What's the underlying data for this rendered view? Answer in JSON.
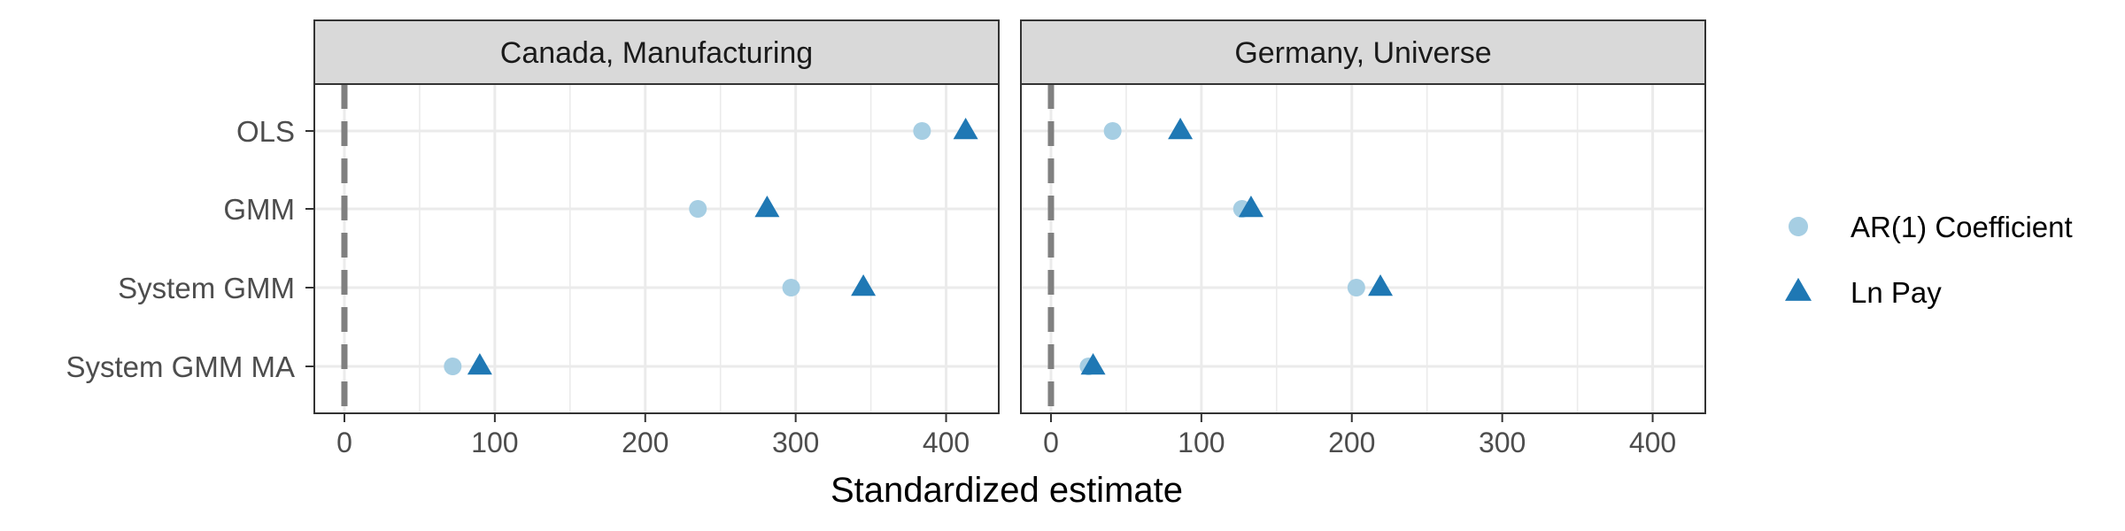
{
  "chart_data": {
    "type": "scatter",
    "xlabel": "Standardized estimate",
    "ylabel": "",
    "xlim": [
      -20,
      435
    ],
    "x_ticks": [
      "0",
      "100",
      "200",
      "300",
      "400"
    ],
    "x_tick_values": [
      0,
      100,
      200,
      300,
      400
    ],
    "categories": [
      "OLS",
      "GMM",
      "System GMM",
      "System GMM MA"
    ],
    "reference_line": {
      "x": 0,
      "style": "dashed",
      "color": "#808080"
    },
    "grid": true,
    "legend": {
      "position": "right",
      "entries": [
        {
          "label": "AR(1) Coefficient",
          "shape": "circle",
          "color": "#A6CEE3"
        },
        {
          "label": "Ln Pay",
          "shape": "triangle",
          "color": "#1F78B4"
        }
      ]
    },
    "panels": [
      {
        "title": "Canada, Manufacturing",
        "series": [
          {
            "name": "AR(1) Coefficient",
            "values": [
              384,
              235,
              297,
              72
            ]
          },
          {
            "name": "Ln Pay",
            "values": [
              413,
              281,
              345,
              90
            ]
          }
        ]
      },
      {
        "title": "Germany, Universe",
        "series": [
          {
            "name": "AR(1) Coefficient",
            "values": [
              41,
              127,
              203,
              25
            ]
          },
          {
            "name": "Ln Pay",
            "values": [
              86,
              133,
              219,
              28
            ]
          }
        ]
      }
    ]
  },
  "colors": {
    "strip_bg": "#D9D9D9",
    "panel_border": "#333333",
    "grid_major": "#EBEBEB",
    "text": "#4D4D4D"
  }
}
